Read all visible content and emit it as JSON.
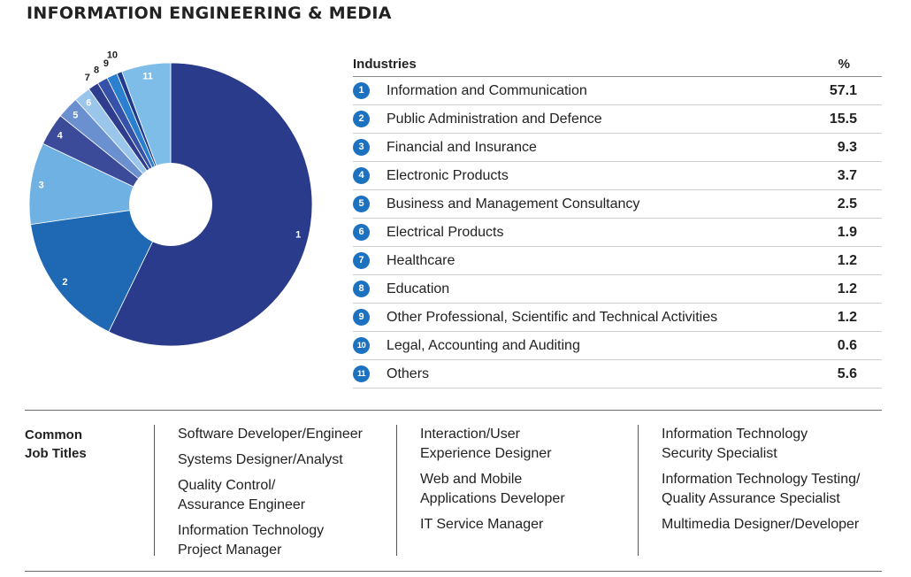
{
  "title": "INFORMATION ENGINEERING & MEDIA",
  "table": {
    "header_industry": "Industries",
    "header_pct": "%",
    "rows": [
      {
        "num": "1",
        "name": "Information and Communication",
        "pct": "57.1"
      },
      {
        "num": "2",
        "name": "Public Administration and Defence",
        "pct": "15.5"
      },
      {
        "num": "3",
        "name": "Financial and Insurance",
        "pct": "9.3"
      },
      {
        "num": "4",
        "name": "Electronic Products",
        "pct": "3.7"
      },
      {
        "num": "5",
        "name": "Business and Management Consultancy",
        "pct": "2.5"
      },
      {
        "num": "6",
        "name": "Electrical Products",
        "pct": "1.9"
      },
      {
        "num": "7",
        "name": "Healthcare",
        "pct": "1.2"
      },
      {
        "num": "8",
        "name": "Education",
        "pct": "1.2"
      },
      {
        "num": "9",
        "name": "Other Professional, Scientific and Technical Activities",
        "pct": "1.2"
      },
      {
        "num": "10",
        "name": "Legal, Accounting and Auditing",
        "pct": "0.6"
      },
      {
        "num": "11",
        "name": "Others",
        "pct": "5.6"
      }
    ]
  },
  "jobs": {
    "label_line1": "Common",
    "label_line2": "Job Titles",
    "columns": [
      [
        "Software Developer/Engineer",
        "Systems Designer/Analyst",
        "Quality Control/ Assurance Engineer",
        "Information Technology Project Manager"
      ],
      [
        "Interaction/User Experience Designer",
        "Web and Mobile Applications Developer",
        "IT Service Manager"
      ],
      [
        "Information Technology Security Specialist",
        "Information Technology Testing/ Quality Assurance Specialist",
        "Multimedia Designer/Developer"
      ]
    ]
  },
  "chart_data": {
    "type": "pie",
    "donut": true,
    "title": "",
    "slices": [
      {
        "label": "1",
        "value": 57.1,
        "color": "#2b3b8c"
      },
      {
        "label": "2",
        "value": 15.5,
        "color": "#1e68b4"
      },
      {
        "label": "3",
        "value": 9.3,
        "color": "#6fb1e3"
      },
      {
        "label": "4",
        "value": 3.7,
        "color": "#3c4a9a"
      },
      {
        "label": "5",
        "value": 2.5,
        "color": "#6b90cf"
      },
      {
        "label": "6",
        "value": 1.9,
        "color": "#9bc6ec"
      },
      {
        "label": "7",
        "value": 1.2,
        "color": "#2e3d8e"
      },
      {
        "label": "8",
        "value": 1.2,
        "color": "#3552a8"
      },
      {
        "label": "9",
        "value": 1.2,
        "color": "#2b7fcf"
      },
      {
        "label": "10",
        "value": 0.6,
        "color": "#1f3a8f"
      },
      {
        "label": "11",
        "value": 5.6,
        "color": "#7fbde9"
      }
    ]
  }
}
